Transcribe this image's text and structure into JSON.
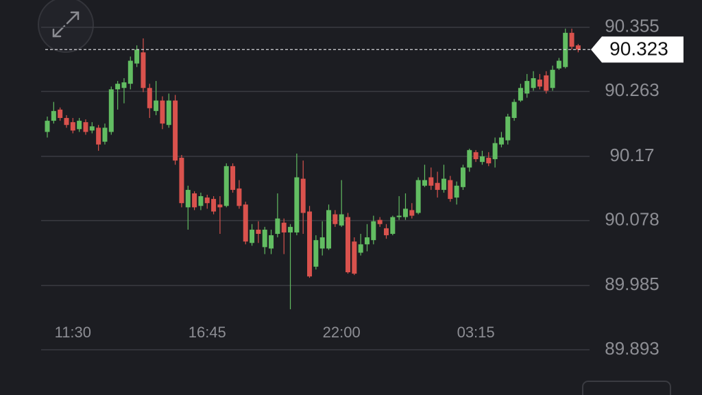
{
  "chart_data": {
    "type": "candlestick",
    "categories": [
      null,
      null,
      null,
      null,
      "11:30",
      null,
      null,
      null,
      null,
      null,
      null,
      null,
      null,
      null,
      null,
      null,
      null,
      null,
      null,
      null,
      null,
      null,
      null,
      null,
      null,
      "16:45",
      null,
      null,
      null,
      null,
      null,
      null,
      null,
      null,
      null,
      null,
      null,
      null,
      null,
      null,
      null,
      null,
      null,
      null,
      null,
      null,
      "22:00",
      null,
      null,
      null,
      null,
      null,
      null,
      null,
      null,
      null,
      null,
      null,
      null,
      null,
      null,
      null,
      null,
      null,
      null,
      null,
      null,
      "03:15",
      null,
      null,
      null,
      null,
      null,
      null,
      null,
      null,
      null,
      null,
      null,
      null,
      null,
      null,
      null,
      null
    ],
    "open": [
      90.205,
      90.221,
      90.237,
      90.225,
      90.219,
      90.209,
      90.219,
      90.207,
      90.211,
      90.191,
      90.205,
      90.266,
      90.268,
      90.274,
      90.303,
      90.319,
      90.268,
      90.235,
      90.25,
      90.215,
      90.25,
      90.168,
      90.097,
      90.117,
      90.099,
      90.111,
      90.109,
      90.101,
      90.099,
      90.156,
      90.124,
      90.101,
      90.046,
      90.065,
      90.04,
      90.038,
      90.059,
      90.075,
      90.061,
      90.061,
      90.138,
      90.091,
      90.012,
      90.038,
      90.038,
      90.087,
      90.071,
      90.083,
      90.048,
      90.032,
      90.044,
      90.05,
      90.079,
      90.067,
      90.059,
      90.083,
      90.083,
      90.093,
      90.089,
      90.128,
      90.14,
      90.132,
      90.122,
      90.136,
      90.111,
      90.126,
      90.154,
      90.176,
      90.162,
      90.168,
      90.166,
      90.187,
      90.193,
      90.225,
      90.25,
      90.26,
      90.268,
      90.28,
      90.286,
      90.268,
      90.296,
      90.298,
      90.347,
      90.329
    ],
    "high": [
      90.227,
      90.248,
      90.24,
      90.229,
      90.225,
      90.225,
      90.223,
      90.219,
      90.215,
      90.217,
      90.27,
      90.278,
      90.282,
      90.313,
      90.329,
      90.339,
      90.274,
      90.278,
      90.256,
      90.26,
      90.258,
      90.172,
      90.128,
      90.12,
      90.118,
      90.115,
      90.113,
      90.113,
      90.16,
      90.16,
      90.136,
      90.105,
      90.073,
      90.077,
      90.069,
      90.065,
      90.117,
      90.081,
      90.073,
      90.174,
      90.164,
      90.099,
      90.057,
      90.077,
      90.101,
      90.093,
      90.136,
      90.089,
      90.054,
      90.059,
      90.073,
      90.085,
      90.083,
      90.073,
      90.085,
      90.113,
      90.117,
      90.103,
      90.14,
      90.158,
      90.154,
      90.148,
      90.158,
      90.142,
      90.134,
      90.158,
      90.181,
      90.179,
      90.178,
      90.176,
      90.197,
      90.205,
      90.231,
      90.252,
      90.274,
      90.288,
      90.292,
      90.288,
      90.292,
      90.3,
      90.311,
      90.353,
      90.353,
      90.331
    ],
    "low": [
      90.197,
      90.217,
      90.221,
      90.211,
      90.203,
      90.205,
      90.201,
      90.203,
      90.178,
      90.187,
      90.201,
      90.237,
      90.246,
      90.266,
      90.298,
      90.262,
      90.225,
      90.229,
      90.209,
      90.211,
      90.158,
      90.097,
      90.065,
      90.093,
      90.093,
      90.095,
      90.087,
      90.059,
      90.097,
      90.118,
      90.095,
      90.044,
      90.042,
      90.046,
      90.03,
      90.03,
      90.054,
      90.03,
      89.951,
      90.057,
      90.059,
      89.996,
      90.008,
      90.028,
      90.036,
      90.069,
      90.069,
      90.002,
      90.0,
      90.028,
      90.034,
      90.044,
      90.069,
      90.052,
      90.057,
      90.079,
      90.079,
      90.081,
      90.087,
      90.126,
      90.122,
      90.111,
      90.118,
      90.105,
      90.101,
      90.122,
      90.148,
      90.162,
      90.158,
      90.156,
      90.154,
      90.183,
      90.187,
      90.221,
      90.248,
      90.254,
      90.264,
      90.266,
      90.26,
      90.264,
      90.294,
      90.296,
      90.323,
      90.319
    ],
    "close": [
      90.221,
      90.235,
      90.225,
      90.215,
      90.207,
      90.221,
      90.205,
      90.213,
      90.187,
      90.211,
      90.266,
      90.274,
      90.276,
      90.307,
      90.323,
      90.268,
      90.239,
      90.25,
      90.217,
      90.25,
      90.164,
      90.103,
      90.122,
      90.097,
      90.113,
      90.103,
      90.091,
      90.097,
      90.156,
      90.122,
      90.099,
      90.048,
      90.065,
      90.059,
      90.065,
      90.057,
      90.081,
      90.061,
      90.069,
      90.14,
      90.089,
      89.998,
      90.05,
      90.054,
      90.093,
      90.073,
      90.087,
      90.004,
      90.002,
      90.044,
      90.054,
      90.077,
      90.073,
      90.057,
      90.083,
      90.085,
      90.095,
      90.085,
      90.136,
      90.136,
      90.128,
      90.122,
      90.138,
      90.109,
      90.128,
      90.154,
      90.179,
      90.166,
      90.17,
      90.16,
      90.189,
      90.197,
      90.227,
      90.248,
      90.268,
      90.278,
      90.282,
      90.27,
      90.264,
      90.294,
      90.307,
      90.347,
      90.327,
      90.323
    ],
    "up_color": "#62bd62",
    "down_color": "#d9524d",
    "ylim": [
      89.893,
      90.394
    ],
    "yticks": [
      90.355,
      90.263,
      90.17,
      90.078,
      89.985,
      89.893
    ],
    "grid": true,
    "last_price": 90.323
  }
}
